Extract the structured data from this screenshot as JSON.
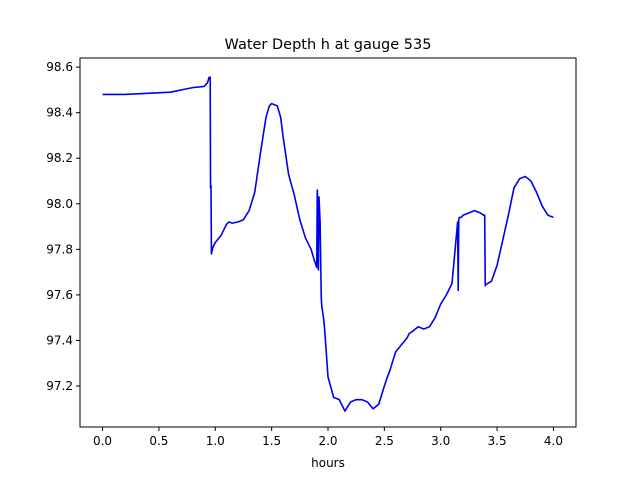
{
  "chart_data": {
    "type": "line",
    "title": "Water Depth h at gauge 535",
    "xlabel": "hours",
    "ylabel": "",
    "xlim": [
      -0.2,
      4.2
    ],
    "ylim": [
      97.02,
      98.64
    ],
    "xticks": [
      {
        "value": 0.0,
        "label": "0.0"
      },
      {
        "value": 0.5,
        "label": "0.5"
      },
      {
        "value": 1.0,
        "label": "1.0"
      },
      {
        "value": 1.5,
        "label": "1.5"
      },
      {
        "value": 2.0,
        "label": "2.0"
      },
      {
        "value": 2.5,
        "label": "2.5"
      },
      {
        "value": 3.0,
        "label": "3.0"
      },
      {
        "value": 3.5,
        "label": "3.5"
      },
      {
        "value": 4.0,
        "label": "4.0"
      }
    ],
    "yticks": [
      {
        "value": 97.2,
        "label": "97.2"
      },
      {
        "value": 97.4,
        "label": "97.4"
      },
      {
        "value": 97.6,
        "label": "97.6"
      },
      {
        "value": 97.8,
        "label": "97.8"
      },
      {
        "value": 98.0,
        "label": "98.0"
      },
      {
        "value": 98.2,
        "label": "98.2"
      },
      {
        "value": 98.4,
        "label": "98.4"
      },
      {
        "value": 98.6,
        "label": "98.6"
      }
    ],
    "grid": false,
    "legend": "none",
    "series": [
      {
        "color": "#0000ee",
        "x": [
          0.0,
          0.2,
          0.4,
          0.6,
          0.65,
          0.7,
          0.8,
          0.9,
          0.93,
          0.945,
          0.955,
          0.958,
          0.962,
          0.966,
          0.97,
          0.975,
          0.98,
          1.0,
          1.05,
          1.1,
          1.12,
          1.15,
          1.2,
          1.25,
          1.3,
          1.35,
          1.4,
          1.45,
          1.48,
          1.5,
          1.55,
          1.58,
          1.6,
          1.65,
          1.7,
          1.75,
          1.8,
          1.85,
          1.88,
          1.9,
          1.905,
          1.91,
          1.915,
          1.92,
          1.93,
          1.94,
          1.945,
          1.96,
          1.97,
          1.98,
          2.0,
          2.05,
          2.1,
          2.12,
          2.15,
          2.2,
          2.25,
          2.3,
          2.35,
          2.4,
          2.45,
          2.5,
          2.52,
          2.55,
          2.6,
          2.65,
          2.7,
          2.72,
          2.75,
          2.8,
          2.85,
          2.9,
          2.95,
          3.0,
          3.05,
          3.1,
          3.15,
          3.155,
          3.16,
          3.165,
          3.17,
          3.18,
          3.2,
          3.25,
          3.3,
          3.35,
          3.38,
          3.39,
          3.395,
          3.4,
          3.45,
          3.5,
          3.55,
          3.6,
          3.65,
          3.7,
          3.75,
          3.8,
          3.85,
          3.9,
          3.95,
          4.0
        ],
        "y": [
          98.48,
          98.48,
          98.485,
          98.49,
          98.495,
          98.5,
          98.51,
          98.515,
          98.53,
          98.555,
          98.555,
          98.07,
          98.08,
          97.78,
          97.79,
          97.8,
          97.81,
          97.83,
          97.86,
          97.91,
          97.92,
          97.915,
          97.92,
          97.93,
          97.97,
          98.05,
          98.22,
          98.38,
          98.43,
          98.44,
          98.43,
          98.38,
          98.3,
          98.13,
          98.04,
          97.93,
          97.85,
          97.8,
          97.75,
          97.72,
          98.06,
          98.0,
          97.71,
          98.03,
          97.92,
          97.59,
          97.55,
          97.5,
          97.45,
          97.38,
          97.24,
          97.15,
          97.14,
          97.12,
          97.09,
          97.13,
          97.14,
          97.14,
          97.13,
          97.1,
          97.12,
          97.2,
          97.23,
          97.27,
          97.35,
          97.38,
          97.41,
          97.43,
          97.44,
          97.46,
          97.45,
          97.46,
          97.5,
          97.56,
          97.6,
          97.65,
          97.92,
          97.62,
          97.93,
          97.94,
          97.94,
          97.94,
          97.95,
          97.96,
          97.97,
          97.96,
          97.95,
          97.95,
          97.64,
          97.645,
          97.66,
          97.73,
          97.84,
          97.95,
          98.07,
          98.11,
          98.12,
          98.1,
          98.05,
          97.99,
          97.95,
          97.94
        ]
      }
    ]
  }
}
